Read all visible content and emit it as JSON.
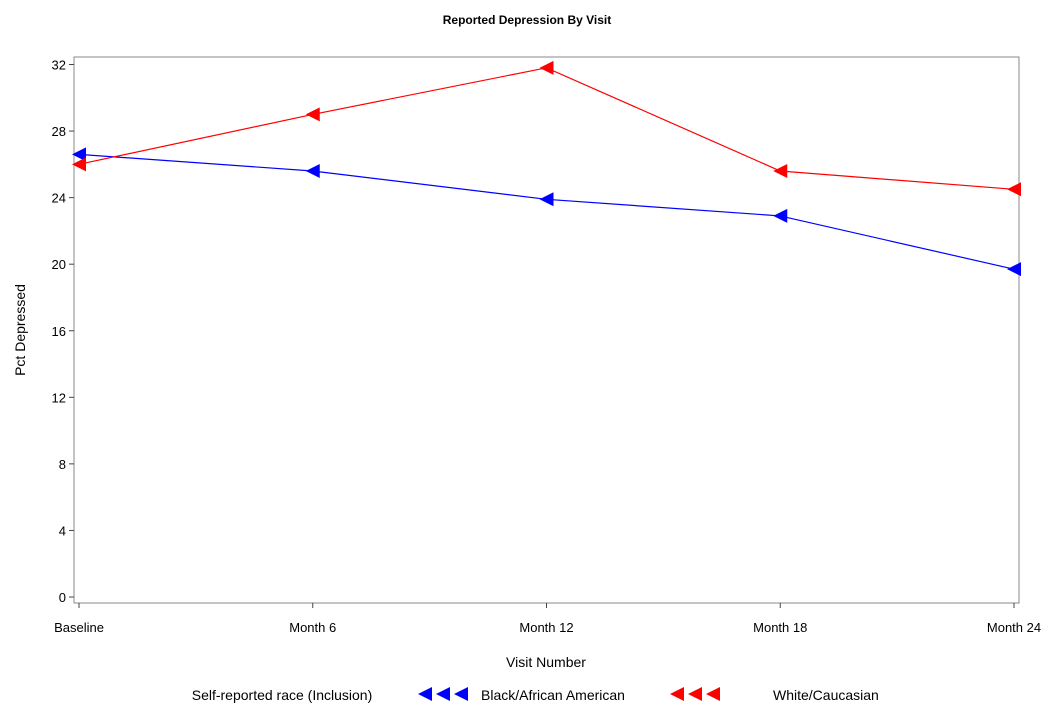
{
  "chart_data": {
    "type": "line",
    "title": "Reported Depression By Visit",
    "xlabel": "Visit Number",
    "ylabel": "Pct Depressed",
    "categories": [
      "Baseline",
      "Month 6",
      "Month 12",
      "Month 18",
      "Month 24"
    ],
    "ylim": [
      0,
      32.5
    ],
    "yticks": [
      0,
      4,
      8,
      12,
      16,
      20,
      24,
      28,
      32
    ],
    "grid": false,
    "legend": {
      "title": "Self-reported race (Inclusion)",
      "placement": "bottom"
    },
    "series": [
      {
        "name": "Black/African American",
        "color": "#0000ff",
        "marker": "left-triangle",
        "values": [
          26.6,
          25.6,
          23.9,
          22.9,
          19.7
        ]
      },
      {
        "name": "White/Caucasian",
        "color": "#ff0000",
        "marker": "left-triangle",
        "values": [
          26.0,
          29.0,
          31.8,
          25.6,
          24.5
        ]
      }
    ]
  }
}
